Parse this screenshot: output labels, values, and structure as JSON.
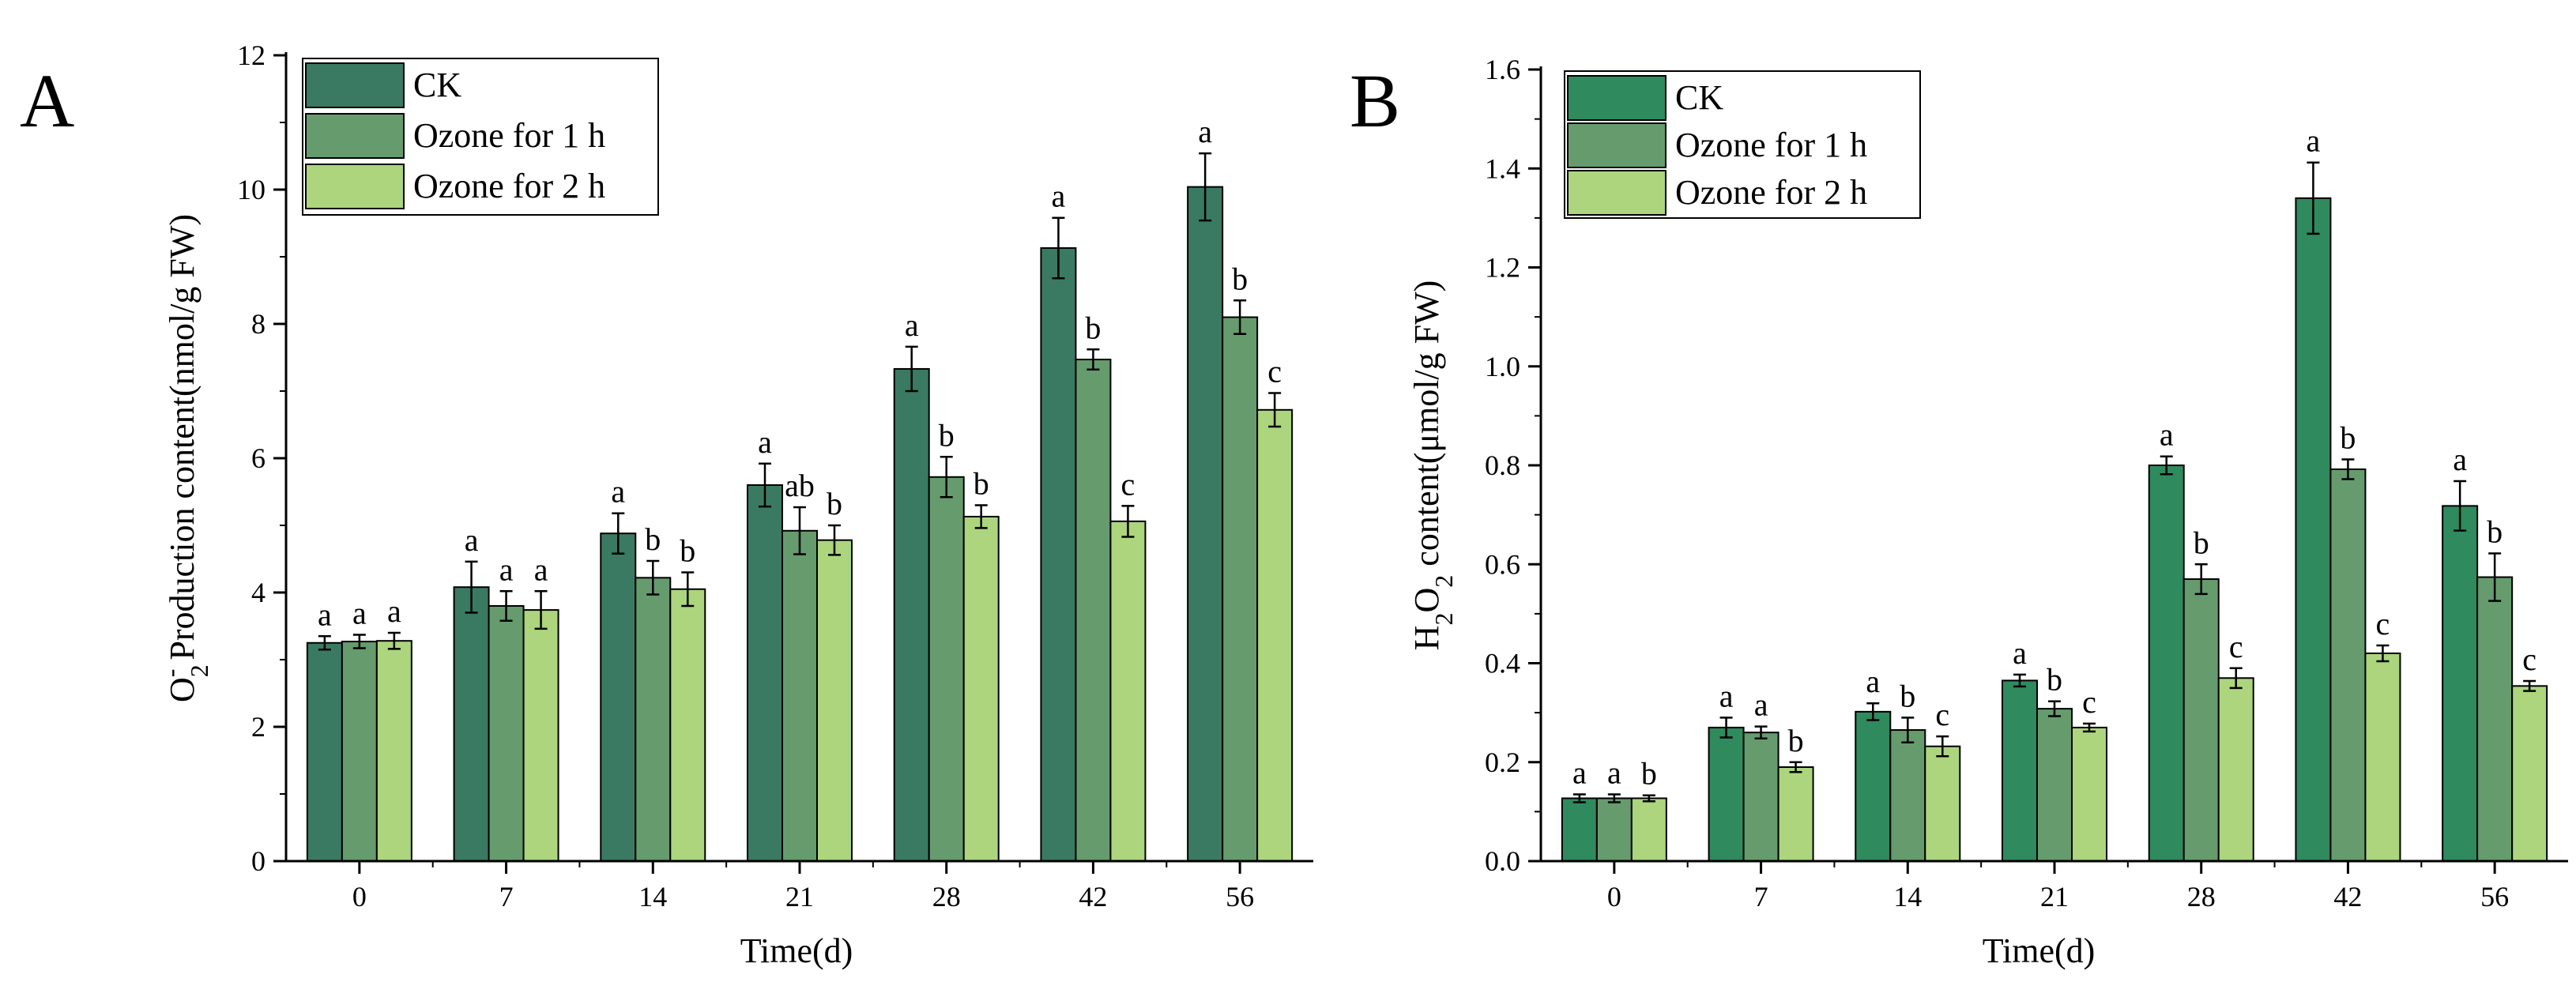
{
  "chart_data": [
    {
      "panel": "A",
      "type": "bar",
      "categories": [
        "0",
        "7",
        "14",
        "21",
        "28",
        "42",
        "56"
      ],
      "series": [
        {
          "name": "CK",
          "color": "#3a7a62",
          "values": [
            3.25,
            4.08,
            4.88,
            5.6,
            7.33,
            9.13,
            10.04
          ],
          "errors": [
            0.1,
            0.38,
            0.3,
            0.32,
            0.33,
            0.45,
            0.5
          ],
          "labels": [
            "a",
            "a",
            "a",
            "a",
            "a",
            "a",
            "a"
          ]
        },
        {
          "name": "Ozone for 1 h",
          "color": "#669b6e",
          "values": [
            3.27,
            3.8,
            4.22,
            4.92,
            5.72,
            7.47,
            8.1
          ],
          "errors": [
            0.1,
            0.22,
            0.25,
            0.35,
            0.3,
            0.15,
            0.25
          ],
          "labels": [
            "a",
            "a",
            "b",
            "ab",
            "b",
            "b",
            "b"
          ]
        },
        {
          "name": "Ozone for 2 h",
          "color": "#acd57e",
          "values": [
            3.28,
            3.74,
            4.05,
            4.78,
            5.13,
            5.06,
            6.72
          ],
          "errors": [
            0.12,
            0.28,
            0.25,
            0.22,
            0.17,
            0.23,
            0.25
          ],
          "labels": [
            "a",
            "a",
            "b",
            "b",
            "b",
            "c",
            "c"
          ]
        }
      ],
      "xlabel": "Time(d)",
      "ylabel": {
        "main": "O",
        "sub": "2",
        "sup": "-",
        "rest": " Production content(nmol/g FW)"
      },
      "ylim": [
        0,
        12
      ],
      "yticks": [
        "0",
        "2",
        "4",
        "6",
        "8",
        "10",
        "12"
      ],
      "ytick_values": [
        0,
        2,
        4,
        6,
        8,
        10,
        12
      ],
      "legend": "top-left",
      "grid": false
    },
    {
      "panel": "B",
      "type": "bar",
      "categories": [
        "0",
        "7",
        "14",
        "21",
        "28",
        "42",
        "56"
      ],
      "series": [
        {
          "name": "CK",
          "color": "#2f8a5e",
          "values": [
            0.127,
            0.27,
            0.302,
            0.365,
            0.8,
            1.34,
            0.718
          ],
          "errors": [
            0.008,
            0.02,
            0.017,
            0.012,
            0.018,
            0.072,
            0.05
          ],
          "labels": [
            "a",
            "a",
            "a",
            "a",
            "a",
            "a",
            "a"
          ]
        },
        {
          "name": "Ozone for 1 h",
          "color": "#669b6e",
          "values": [
            0.127,
            0.26,
            0.265,
            0.308,
            0.57,
            0.792,
            0.574
          ],
          "errors": [
            0.008,
            0.012,
            0.025,
            0.015,
            0.03,
            0.02,
            0.048
          ],
          "labels": [
            "a",
            "a",
            "b",
            "b",
            "b",
            "b",
            "b"
          ]
        },
        {
          "name": "Ozone for 2 h",
          "color": "#acd57e",
          "values": [
            0.127,
            0.19,
            0.232,
            0.27,
            0.37,
            0.42,
            0.354
          ],
          "errors": [
            0.006,
            0.01,
            0.02,
            0.008,
            0.02,
            0.016,
            0.01
          ],
          "labels": [
            "b",
            "b",
            "c",
            "c",
            "c",
            "c",
            "c"
          ]
        }
      ],
      "xlabel": "Time(d)",
      "ylabel": {
        "main": "H",
        "sub": "2",
        "main2": "O",
        "sub2": "2",
        "rest": " content(μmol/g FW)"
      },
      "ylim": [
        0,
        1.6
      ],
      "yticks": [
        "0.0",
        "0.2",
        "0.4",
        "0.6",
        "0.8",
        "1.0",
        "1.2",
        "1.4",
        "1.6"
      ],
      "ytick_values": [
        0,
        0.2,
        0.4,
        0.6,
        0.8,
        1.0,
        1.2,
        1.4,
        1.6
      ],
      "legend": "top-left",
      "grid": false
    }
  ]
}
